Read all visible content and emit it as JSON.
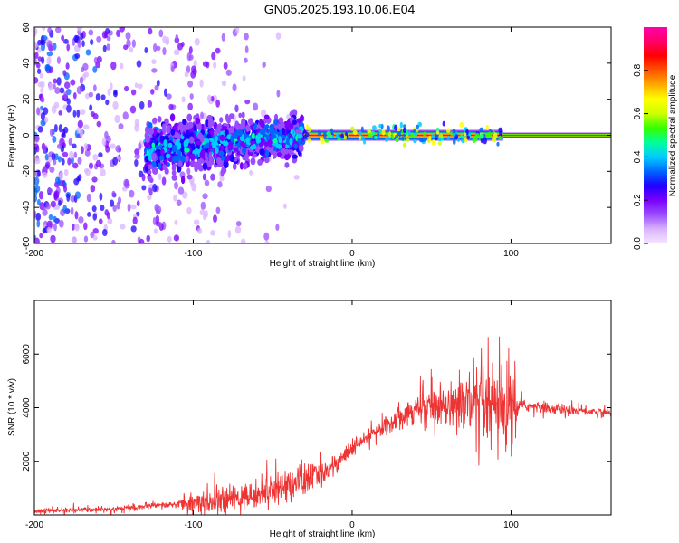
{
  "title": "GN05.2025.193.10.06.E04",
  "colors": {
    "snr_line": "#ee3333",
    "spectrogram_colormap": [
      "#f5e6ff",
      "#d9b3ff",
      "#9a4dff",
      "#7a00ff",
      "#2000ff",
      "#0066ff",
      "#00ccff",
      "#00ff99",
      "#33ff00",
      "#ccff00",
      "#ffff00",
      "#ffaa00",
      "#ff5500",
      "#ff0000",
      "#ff0066",
      "#ff00aa"
    ]
  },
  "chart_data": [
    {
      "type": "heatmap",
      "name": "spectrogram",
      "title": "",
      "xlabel": "Height of straight line (km)",
      "ylabel": "Frequency (Hz)",
      "xlim": [
        -200,
        163
      ],
      "ylim": [
        -60,
        60
      ],
      "xticks": [
        -200,
        -100,
        0,
        100
      ],
      "xtick_labels": [
        "-200",
        "-100",
        "0",
        "100"
      ],
      "yticks": [
        -60,
        -40,
        -20,
        0,
        20,
        40,
        60
      ],
      "ytick_labels": [
        "-60",
        "-40",
        "-20",
        "0",
        "20",
        "40",
        "60"
      ],
      "colorbar": {
        "label": "Normalized spectral amplitude",
        "range": [
          0,
          1
        ],
        "ticks": [
          0.0,
          0.2,
          0.4,
          0.6,
          0.8
        ],
        "tick_labels": [
          "0.0",
          "0.2",
          "0.4",
          "0.6",
          "0.8"
        ]
      },
      "features": [
        {
          "x_range": [
            -200,
            -130
          ],
          "freq_spread": [
            -60,
            60
          ],
          "amplitude": 0.15,
          "description_level": "scattered"
        },
        {
          "x_range": [
            -130,
            -30
          ],
          "center_freq": [
            -8,
            0
          ],
          "half_width": [
            12,
            8
          ],
          "amplitude": 0.35
        },
        {
          "x_range": [
            -30,
            95
          ],
          "center_freq": [
            0,
            0
          ],
          "half_width": [
            3,
            3
          ],
          "amplitude": 0.9
        },
        {
          "x_range": [
            95,
            163
          ],
          "center_freq": [
            0,
            0
          ],
          "half_width": [
            1.5,
            1.5
          ],
          "amplitude": 0.95
        }
      ],
      "grid": false
    },
    {
      "type": "line",
      "name": "snr",
      "title": "",
      "xlabel": "Height of straight line (km)",
      "ylabel": "SNR (10 * v/v)",
      "xlim": [
        -200,
        163
      ],
      "ylim": [
        0,
        8000
      ],
      "xticks": [
        -200,
        -100,
        0,
        100
      ],
      "xtick_labels": [
        "-200",
        "-100",
        "0",
        "100"
      ],
      "yticks": [
        2000,
        4000,
        6000
      ],
      "ytick_labels": [
        "2000",
        "4000",
        "6000"
      ],
      "envelope": {
        "x": [
          -200,
          -160,
          -120,
          -100,
          -80,
          -60,
          -40,
          -25,
          -15,
          -5,
          5,
          20,
          30,
          45,
          60,
          75,
          85,
          95,
          100,
          105,
          120,
          140,
          163
        ],
        "y": [
          150,
          200,
          350,
          450,
          550,
          750,
          1150,
          1400,
          1700,
          2200,
          2700,
          3300,
          3700,
          4100,
          4200,
          4100,
          4000,
          3800,
          3700,
          4100,
          4000,
          3900,
          3800
        ]
      },
      "noise_scale": {
        "x": [
          -200,
          -110,
          -100,
          -60,
          -30,
          -20,
          10,
          40,
          60,
          75,
          88,
          100,
          105,
          163
        ],
        "y": [
          80,
          120,
          400,
          450,
          650,
          400,
          250,
          500,
          700,
          1300,
          1500,
          1900,
          200,
          150
        ]
      },
      "grid": false
    }
  ]
}
